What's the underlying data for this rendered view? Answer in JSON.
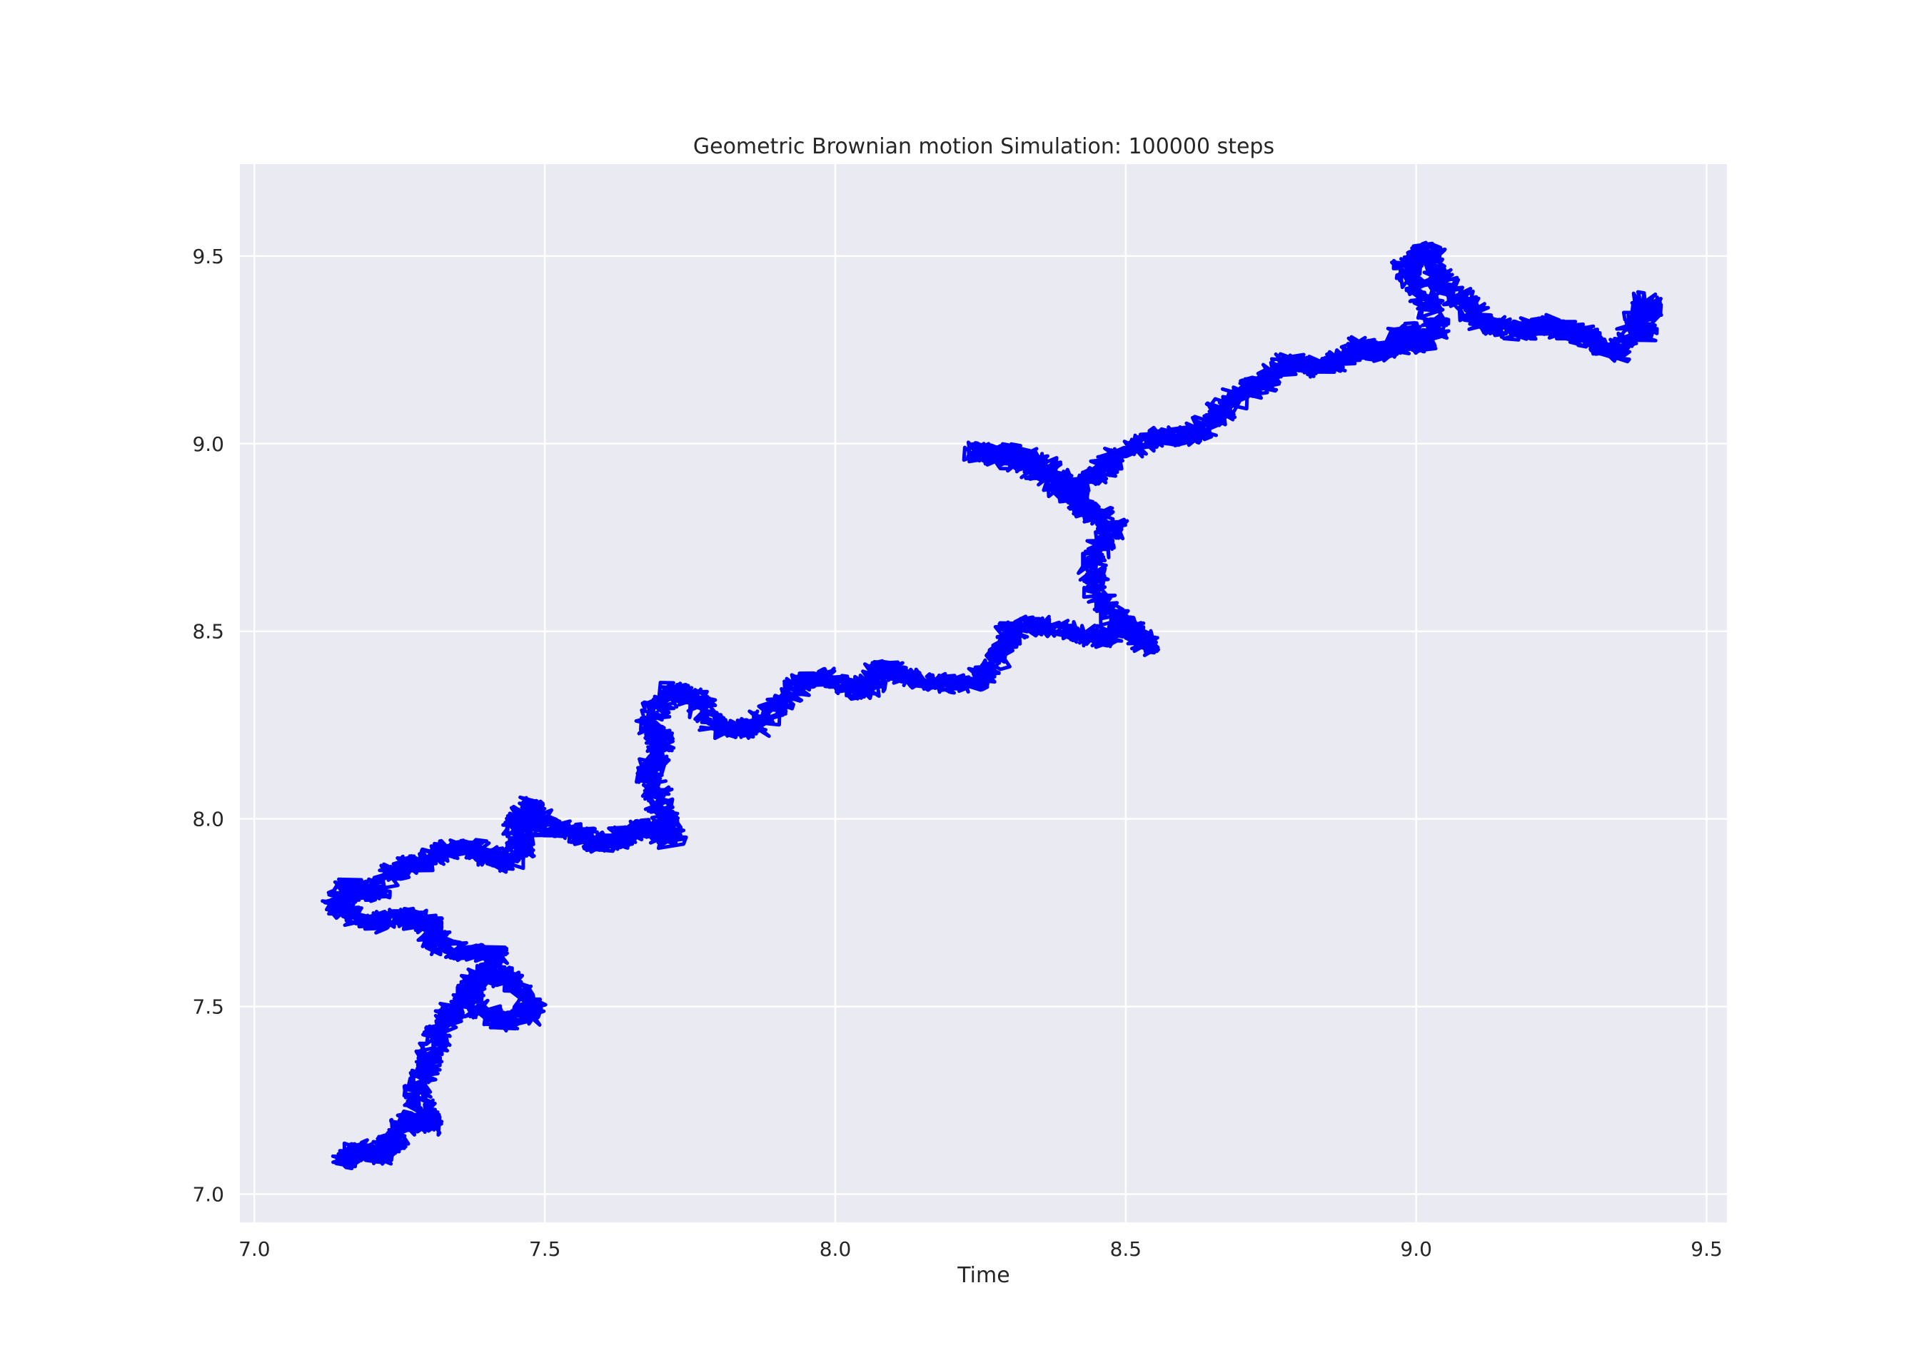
{
  "chart_data": {
    "type": "scatter",
    "title": "Geometric Brownian motion Simulation: 100000 steps",
    "xlabel": "Time",
    "ylabel": "",
    "xlim": [
      6.975,
      9.535
    ],
    "ylim": [
      6.925,
      9.745
    ],
    "xticks": [
      "7.0",
      "7.5",
      "8.0",
      "8.5",
      "9.0",
      "9.5"
    ],
    "yticks": [
      "7.0",
      "7.5",
      "8.0",
      "8.5",
      "9.0",
      "9.5"
    ],
    "grid": true,
    "colors": {
      "background": "#eaeaf2",
      "grid": "#ffffff",
      "series": "#0000ff"
    },
    "series": [
      {
        "values": [
          [
            7.15,
            7.08
          ],
          [
            7.18,
            7.12
          ],
          [
            7.22,
            7.1
          ],
          [
            7.24,
            7.14
          ],
          [
            7.26,
            7.2
          ],
          [
            7.3,
            7.18
          ],
          [
            7.28,
            7.26
          ],
          [
            7.3,
            7.36
          ],
          [
            7.32,
            7.44
          ],
          [
            7.36,
            7.52
          ],
          [
            7.4,
            7.6
          ],
          [
            7.45,
            7.56
          ],
          [
            7.48,
            7.48
          ],
          [
            7.42,
            7.46
          ],
          [
            7.36,
            7.52
          ],
          [
            7.42,
            7.64
          ],
          [
            7.38,
            7.64
          ],
          [
            7.32,
            7.66
          ],
          [
            7.3,
            7.72
          ],
          [
            7.26,
            7.74
          ],
          [
            7.2,
            7.72
          ],
          [
            7.14,
            7.76
          ],
          [
            7.16,
            7.82
          ],
          [
            7.2,
            7.8
          ],
          [
            7.24,
            7.86
          ],
          [
            7.28,
            7.88
          ],
          [
            7.34,
            7.92
          ],
          [
            7.38,
            7.92
          ],
          [
            7.43,
            7.88
          ],
          [
            7.46,
            7.92
          ],
          [
            7.45,
            7.98
          ],
          [
            7.48,
            8.04
          ],
          [
            7.5,
            7.98
          ],
          [
            7.56,
            7.96
          ],
          [
            7.6,
            7.93
          ],
          [
            7.64,
            7.96
          ],
          [
            7.68,
            7.98
          ],
          [
            7.72,
            7.94
          ],
          [
            7.7,
            8.04
          ],
          [
            7.68,
            8.12
          ],
          [
            7.7,
            8.2
          ],
          [
            7.68,
            8.26
          ],
          [
            7.72,
            8.34
          ],
          [
            7.76,
            8.32
          ],
          [
            7.8,
            8.24
          ],
          [
            7.86,
            8.24
          ],
          [
            7.9,
            8.3
          ],
          [
            7.94,
            8.36
          ],
          [
            7.98,
            8.38
          ],
          [
            8.05,
            8.34
          ],
          [
            8.08,
            8.4
          ],
          [
            8.12,
            8.38
          ],
          [
            8.18,
            8.36
          ],
          [
            8.24,
            8.36
          ],
          [
            8.28,
            8.42
          ],
          [
            8.3,
            8.5
          ],
          [
            8.34,
            8.52
          ],
          [
            8.4,
            8.5
          ],
          [
            8.46,
            8.48
          ],
          [
            8.5,
            8.52
          ],
          [
            8.54,
            8.46
          ],
          [
            8.5,
            8.5
          ],
          [
            8.45,
            8.6
          ],
          [
            8.44,
            8.7
          ],
          [
            8.48,
            8.78
          ],
          [
            8.44,
            8.82
          ],
          [
            8.4,
            8.86
          ],
          [
            8.36,
            8.92
          ],
          [
            8.3,
            8.96
          ],
          [
            8.24,
            8.98
          ],
          [
            8.3,
            8.98
          ],
          [
            8.36,
            8.94
          ],
          [
            8.42,
            8.88
          ],
          [
            8.46,
            8.94
          ],
          [
            8.5,
            8.98
          ],
          [
            8.56,
            9.02
          ],
          [
            8.62,
            9.02
          ],
          [
            8.66,
            9.08
          ],
          [
            8.7,
            9.14
          ],
          [
            8.74,
            9.16
          ],
          [
            8.78,
            9.22
          ],
          [
            8.82,
            9.2
          ],
          [
            8.86,
            9.22
          ],
          [
            8.9,
            9.26
          ],
          [
            8.96,
            9.24
          ],
          [
            8.98,
            9.3
          ],
          [
            9.0,
            9.26
          ],
          [
            9.04,
            9.3
          ],
          [
            9.02,
            9.38
          ],
          [
            8.98,
            9.46
          ],
          [
            9.02,
            9.52
          ],
          [
            9.04,
            9.44
          ],
          [
            9.08,
            9.38
          ],
          [
            9.12,
            9.32
          ],
          [
            9.18,
            9.3
          ],
          [
            9.22,
            9.32
          ],
          [
            9.26,
            9.3
          ],
          [
            9.3,
            9.28
          ],
          [
            9.34,
            9.24
          ],
          [
            9.38,
            9.32
          ],
          [
            9.4,
            9.38
          ],
          [
            9.39,
            9.28
          ]
        ]
      }
    ]
  }
}
